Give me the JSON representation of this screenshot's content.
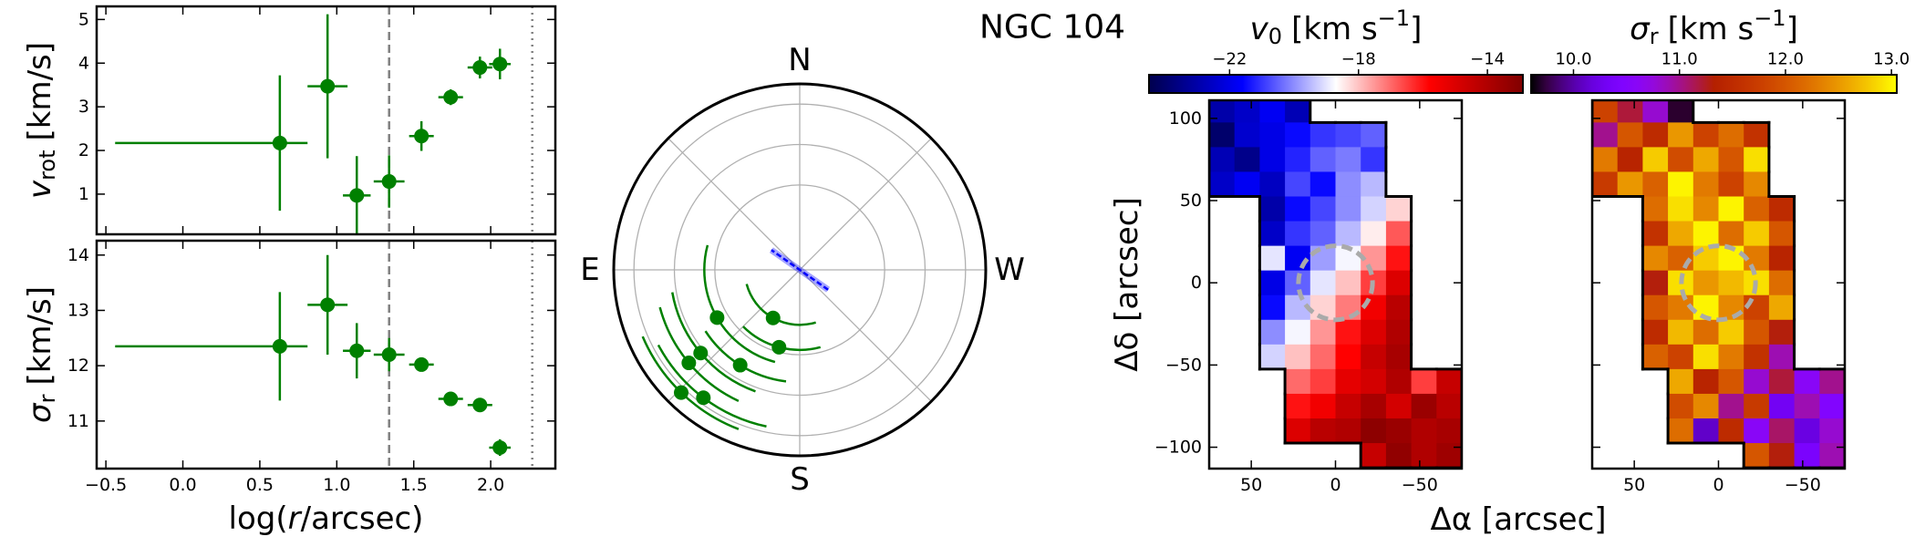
{
  "title": "NGC 104",
  "chart_data": [
    {
      "type": "errorbar",
      "ylabel": {
        "symbol": "v",
        "subscript": "rot",
        "unit": "[km/s]"
      },
      "x": [
        0.63,
        0.94,
        1.13,
        1.34,
        1.55,
        1.74,
        1.93,
        2.06
      ],
      "xerr_minus": [
        1.07,
        0.13,
        0.09,
        0.1,
        0.08,
        0.08,
        0.08,
        0.07
      ],
      "xerr_plus": [
        0.18,
        0.13,
        0.09,
        0.1,
        0.08,
        0.08,
        0.08,
        0.07
      ],
      "values": [
        2.17,
        3.47,
        0.97,
        1.29,
        2.33,
        3.22,
        3.9,
        3.98
      ],
      "yerr": [
        1.55,
        1.65,
        0.9,
        0.6,
        0.34,
        0.18,
        0.25,
        0.35
      ],
      "xlim": [
        -0.56,
        2.42
      ],
      "ylim": [
        0.08,
        5.3
      ],
      "yticks": [
        1,
        2,
        3,
        4,
        5
      ],
      "color": "#008000",
      "reference_lines": [
        {
          "value": 1.34,
          "style": "dashed",
          "color": "#808080"
        },
        {
          "value": 2.27,
          "style": "dotted",
          "color": "#808080"
        }
      ]
    },
    {
      "type": "errorbar",
      "ylabel": {
        "symbol": "σ",
        "subscript": "r",
        "unit": "[km/s]"
      },
      "xlabel": {
        "prefix": "log(",
        "symbol": "r",
        "suffix": "/arcsec)"
      },
      "x": [
        0.63,
        0.94,
        1.13,
        1.34,
        1.55,
        1.74,
        1.93,
        2.06
      ],
      "xerr_minus": [
        1.07,
        0.13,
        0.09,
        0.1,
        0.08,
        0.08,
        0.08,
        0.07
      ],
      "xerr_plus": [
        0.18,
        0.13,
        0.09,
        0.1,
        0.08,
        0.08,
        0.08,
        0.07
      ],
      "values": [
        12.35,
        13.1,
        12.27,
        12.2,
        12.02,
        11.4,
        11.29,
        10.52
      ],
      "yerr": [
        0.98,
        0.9,
        0.5,
        0.3,
        0.1,
        0.06,
        0.06,
        0.15
      ],
      "xlim": [
        -0.56,
        2.42
      ],
      "ylim": [
        10.14,
        14.26
      ],
      "yticks": [
        11,
        12,
        13,
        14
      ],
      "xticks": [
        {
          "value": -0.5,
          "label": "−0.5"
        },
        {
          "value": 0,
          "label": "0.0"
        },
        0.5,
        {
          "value": 1,
          "label": "1.0"
        },
        1.5,
        {
          "value": 2,
          "label": "2.0"
        }
      ],
      "color": "#008000",
      "reference_lines": [
        {
          "value": 1.34,
          "style": "dashed",
          "color": "#808080"
        },
        {
          "value": 2.27,
          "style": "dotted",
          "color": "#808080"
        }
      ]
    },
    {
      "type": "polar",
      "labels": {
        "north": "N",
        "east": "E",
        "south": "S",
        "west": "W"
      },
      "r": [
        0.63,
        0.94,
        1.13,
        1.34,
        1.55,
        1.74,
        1.93,
        2.06
      ],
      "theta": [
        151,
        165,
        120,
        148,
        130,
        130,
        143,
        136
      ],
      "theta_err": [
        46,
        30,
        45,
        25,
        30,
        25,
        25,
        23
      ],
      "rlim": [
        -0.05,
        2.25
      ],
      "rticks": [
        1,
        1.5,
        2
      ],
      "color": "#008000",
      "kinematic_pa": 55,
      "kinematic_pa_color": "#0000ff"
    },
    {
      "type": "map",
      "colorbar_label": {
        "symbol": "v",
        "subscript": "0",
        "unit_open": "[km s",
        "superscript": "−1",
        "unit_close": "]"
      },
      "xlabel": "Δα [arcsec]",
      "ylabel": "Δδ [arcsec]",
      "colormap": "seismic",
      "clim": [
        -24.5,
        -12.9
      ],
      "cticks": [
        {
          "value": -22,
          "label": "−22"
        },
        {
          "value": -18,
          "label": "−18"
        },
        {
          "value": -14,
          "label": "−14"
        }
      ],
      "xlim": [
        75,
        -75
      ],
      "ylim": [
        -113,
        111
      ],
      "xticks": [
        50,
        0,
        {
          "value": -50,
          "label": "−50"
        }
      ],
      "yticks": [
        {
          "value": -100,
          "label": "−100"
        },
        {
          "value": -50,
          "label": "−50"
        },
        0,
        50,
        100
      ],
      "x_centers": [
        67.5,
        52.5,
        37.5,
        22.5,
        7.5,
        -7.5,
        -22.5,
        -37.5,
        -52.5,
        -67.5
      ],
      "y_centers": [
        105,
        90,
        75,
        60,
        45,
        30,
        15,
        0,
        -15,
        -30,
        -45,
        -60,
        -75,
        -90,
        -105
      ],
      "values": [
        [
          -23.0,
          -22.5,
          -21.8,
          -22.8,
          null,
          null,
          null,
          null,
          null,
          null
        ],
        [
          -24.0,
          -22.4,
          -22.0,
          -21.5,
          -21.0,
          -20.8,
          -20.5,
          null,
          null,
          null
        ],
        [
          -22.8,
          -23.5,
          -22.0,
          -21.2,
          -20.5,
          -20.2,
          -21.0,
          null,
          null,
          null
        ],
        [
          -22.5,
          -21.8,
          -22.6,
          -20.8,
          -21.5,
          -20.0,
          -19.5,
          null,
          null,
          null
        ],
        [
          null,
          null,
          -23.0,
          -21.5,
          -20.8,
          -20.0,
          -19.2,
          -18.2,
          null,
          null
        ],
        [
          null,
          null,
          -22.5,
          -21.0,
          -20.5,
          -19.5,
          -18.5,
          -16.8,
          null,
          null
        ],
        [
          null,
          null,
          -19.0,
          -21.8,
          -19.8,
          -18.8,
          -17.5,
          -16.0,
          null,
          null
        ],
        [
          null,
          null,
          -22.0,
          -20.5,
          -19.0,
          -18.0,
          -16.5,
          -15.0,
          null,
          null
        ],
        [
          null,
          null,
          -21.5,
          -19.5,
          -18.2,
          -17.2,
          -15.5,
          -14.2,
          null,
          null
        ],
        [
          null,
          null,
          -20.0,
          -18.8,
          -17.5,
          -16.0,
          -15.0,
          -14.0,
          null,
          null
        ],
        [
          null,
          null,
          -19.2,
          -18.0,
          -17.0,
          -15.8,
          -14.5,
          -13.8,
          null,
          null
        ],
        [
          null,
          null,
          null,
          -17.0,
          -16.5,
          -15.2,
          -14.8,
          -14.0,
          -16.5,
          -14.5
        ],
        [
          null,
          null,
          null,
          -16.0,
          -15.5,
          -14.5,
          -13.8,
          -14.8,
          -13.5,
          -14.2
        ],
        [
          null,
          null,
          null,
          -15.0,
          -14.2,
          -14.0,
          -13.2,
          -13.5,
          -14.0,
          -13.8
        ],
        [
          null,
          null,
          null,
          null,
          null,
          null,
          -14.5,
          -13.3,
          -14.0,
          -13.6
        ]
      ],
      "circle_radius": 22,
      "circle_color": "#aaaaaa"
    },
    {
      "type": "map",
      "colorbar_label": {
        "symbol": "σ",
        "subscript": "r",
        "unit_open": "[km s",
        "superscript": "−1",
        "unit_close": "]"
      },
      "colormap": "gnuplot",
      "clim": [
        9.6,
        13.05
      ],
      "cticks": [
        {
          "value": 10,
          "label": "10.0"
        },
        {
          "value": 11,
          "label": "11.0"
        },
        {
          "value": 12,
          "label": "12.0"
        },
        {
          "value": 13,
          "label": "13.0"
        }
      ],
      "xlim": [
        75,
        -75
      ],
      "ylim": [
        -113,
        111
      ],
      "xticks": [
        50,
        0,
        {
          "value": -50,
          "label": "−50"
        }
      ],
      "x_centers": [
        67.5,
        52.5,
        37.5,
        22.5,
        7.5,
        -7.5,
        -22.5,
        -37.5,
        -52.5,
        -67.5
      ],
      "y_centers": [
        105,
        90,
        75,
        60,
        45,
        30,
        15,
        0,
        -15,
        -30,
        -45,
        -60,
        -75,
        -90,
        -105
      ],
      "values": [
        [
          11.8,
          11.2,
          10.8,
          9.7,
          null,
          null,
          null,
          null,
          null,
          null
        ],
        [
          11.0,
          12.0,
          11.5,
          12.5,
          11.8,
          12.2,
          11.6,
          null,
          null,
          null
        ],
        [
          12.3,
          11.4,
          12.8,
          11.9,
          12.6,
          12.0,
          12.9,
          null,
          null,
          null
        ],
        [
          11.7,
          12.5,
          12.1,
          13.0,
          12.3,
          11.8,
          12.4,
          null,
          null,
          null
        ],
        [
          null,
          null,
          12.2,
          12.9,
          12.4,
          13.0,
          12.1,
          11.5,
          null,
          null
        ],
        [
          null,
          null,
          11.6,
          12.6,
          13.0,
          12.2,
          12.8,
          12.0,
          null,
          null
        ],
        [
          null,
          null,
          12.4,
          12.1,
          12.8,
          13.0,
          12.3,
          11.4,
          null,
          null
        ],
        [
          null,
          null,
          11.3,
          12.9,
          12.5,
          12.7,
          12.9,
          12.2,
          null,
          null
        ],
        [
          null,
          null,
          12.0,
          12.3,
          13.0,
          12.4,
          11.8,
          12.6,
          null,
          null
        ],
        [
          null,
          null,
          11.5,
          12.7,
          12.2,
          12.8,
          12.0,
          11.3,
          null,
          null
        ],
        [
          null,
          null,
          12.1,
          11.8,
          12.9,
          12.3,
          11.6,
          10.9,
          null,
          null
        ],
        [
          null,
          null,
          null,
          12.6,
          11.4,
          12.0,
          10.8,
          11.2,
          10.6,
          11.0
        ],
        [
          null,
          null,
          null,
          11.9,
          12.4,
          11.0,
          11.7,
          10.3,
          10.9,
          10.5
        ],
        [
          null,
          null,
          null,
          12.2,
          10.1,
          11.5,
          10.6,
          11.1,
          10.2,
          10.8
        ],
        [
          null,
          null,
          null,
          null,
          null,
          null,
          12.0,
          11.3,
          10.4,
          10.9
        ]
      ],
      "circle_radius": 22,
      "circle_color": "#aaaaaa"
    }
  ]
}
